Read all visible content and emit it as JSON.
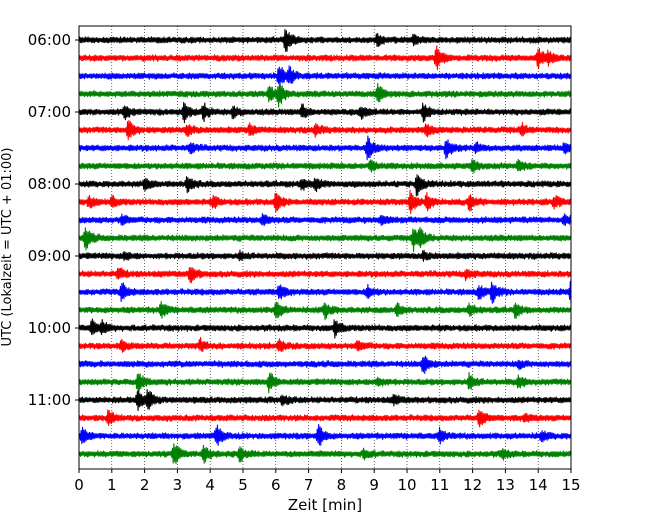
{
  "chart_data": {
    "type": "line",
    "title": "",
    "xlabel": "Zeit  [min]",
    "ylabel": "UTC (Lokalzeit = UTC + 01:00)",
    "xlim": [
      0,
      15
    ],
    "x_ticks": [
      0,
      1,
      2,
      3,
      4,
      5,
      6,
      7,
      8,
      9,
      10,
      11,
      12,
      13,
      14,
      15
    ],
    "x_tick_labels": [
      "0",
      "1",
      "2",
      "3",
      "4",
      "5",
      "6",
      "7",
      "8",
      "9",
      "10",
      "11",
      "12",
      "13",
      "14",
      "15"
    ],
    "y_tick_labels": [
      "06:00",
      "07:00",
      "08:00",
      "09:00",
      "10:00",
      "11:00"
    ],
    "grid": "vertical-dotted",
    "trace_minutes": 15,
    "colors": [
      "#000000",
      "#ff0000",
      "#0000ff",
      "#008000"
    ],
    "traces": [
      {
        "start": "06:00",
        "color": "#000000",
        "events": [
          [
            6.3,
            1.0
          ],
          [
            9.1,
            0.5
          ],
          [
            10.2,
            0.4
          ]
        ]
      },
      {
        "start": "06:15",
        "color": "#ff0000",
        "events": [
          [
            10.9,
            1.0
          ],
          [
            14.0,
            0.8
          ],
          [
            14.3,
            0.5
          ]
        ]
      },
      {
        "start": "06:30",
        "color": "#0000ff",
        "events": [
          [
            6.1,
            1.0
          ],
          [
            6.4,
            0.7
          ]
        ]
      },
      {
        "start": "06:45",
        "color": "#008000",
        "events": [
          [
            5.8,
            0.7
          ],
          [
            6.1,
            1.0
          ],
          [
            9.1,
            0.9
          ]
        ]
      },
      {
        "start": "07:00",
        "color": "#000000",
        "events": [
          [
            1.4,
            0.5
          ],
          [
            3.2,
            0.9
          ],
          [
            3.8,
            0.7
          ],
          [
            4.7,
            0.5
          ],
          [
            6.8,
            0.6
          ],
          [
            8.6,
            0.5
          ],
          [
            10.5,
            0.8
          ]
        ]
      },
      {
        "start": "07:15",
        "color": "#ff0000",
        "events": [
          [
            1.5,
            1.0
          ],
          [
            3.3,
            0.5
          ],
          [
            5.2,
            0.5
          ],
          [
            7.2,
            0.5
          ],
          [
            10.6,
            0.5
          ],
          [
            13.5,
            0.5
          ]
        ]
      },
      {
        "start": "07:30",
        "color": "#0000ff",
        "events": [
          [
            3.4,
            0.4
          ],
          [
            8.8,
            1.0
          ],
          [
            11.2,
            0.9
          ],
          [
            12.1,
            0.4
          ],
          [
            14.8,
            0.4
          ]
        ]
      },
      {
        "start": "07:45",
        "color": "#008000",
        "events": [
          [
            8.9,
            0.5
          ],
          [
            12.0,
            0.5
          ],
          [
            13.4,
            0.5
          ]
        ]
      },
      {
        "start": "08:00",
        "color": "#000000",
        "events": [
          [
            2.0,
            0.5
          ],
          [
            3.3,
            0.7
          ],
          [
            6.8,
            0.5
          ],
          [
            7.2,
            0.6
          ],
          [
            10.3,
            1.0
          ]
        ]
      },
      {
        "start": "08:15",
        "color": "#ff0000",
        "events": [
          [
            0.3,
            0.5
          ],
          [
            1.0,
            0.4
          ],
          [
            4.1,
            0.5
          ],
          [
            6.0,
            1.0
          ],
          [
            10.1,
            1.0
          ],
          [
            10.6,
            0.7
          ],
          [
            11.9,
            0.8
          ],
          [
            14.5,
            0.5
          ]
        ]
      },
      {
        "start": "08:30",
        "color": "#0000ff",
        "events": [
          [
            1.3,
            0.4
          ],
          [
            5.6,
            0.5
          ],
          [
            9.2,
            0.4
          ],
          [
            14.8,
            0.4
          ]
        ]
      },
      {
        "start": "08:45",
        "color": "#008000",
        "events": [
          [
            0.2,
            1.0
          ],
          [
            10.2,
            1.0
          ],
          [
            10.4,
            0.6
          ]
        ]
      },
      {
        "start": "09:00",
        "color": "#000000",
        "events": [
          [
            1.4,
            0.3
          ],
          [
            4.9,
            0.3
          ],
          [
            10.5,
            0.3
          ]
        ]
      },
      {
        "start": "09:15",
        "color": "#ff0000",
        "events": [
          [
            1.2,
            0.5
          ],
          [
            3.4,
            0.8
          ],
          [
            11.8,
            0.4
          ]
        ]
      },
      {
        "start": "09:30",
        "color": "#0000ff",
        "events": [
          [
            1.3,
            0.8
          ],
          [
            6.1,
            0.7
          ],
          [
            8.8,
            0.5
          ],
          [
            12.2,
            0.6
          ],
          [
            12.6,
            0.9
          ],
          [
            15.0,
            1.0
          ]
        ]
      },
      {
        "start": "09:45",
        "color": "#008000",
        "events": [
          [
            2.5,
            0.7
          ],
          [
            6.0,
            0.8
          ],
          [
            7.5,
            0.7
          ],
          [
            9.7,
            0.5
          ],
          [
            11.9,
            0.5
          ],
          [
            13.3,
            0.6
          ]
        ]
      },
      {
        "start": "10:00",
        "color": "#000000",
        "events": [
          [
            0.4,
            0.6
          ],
          [
            0.7,
            0.5
          ],
          [
            7.8,
            0.7
          ]
        ]
      },
      {
        "start": "10:15",
        "color": "#ff0000",
        "events": [
          [
            1.3,
            0.4
          ],
          [
            3.7,
            0.5
          ],
          [
            6.1,
            0.4
          ],
          [
            8.5,
            0.4
          ]
        ]
      },
      {
        "start": "10:30",
        "color": "#0000ff",
        "events": [
          [
            10.5,
            0.9
          ],
          [
            13.4,
            0.3
          ]
        ]
      },
      {
        "start": "10:45",
        "color": "#008000",
        "events": [
          [
            1.8,
            0.8
          ],
          [
            5.8,
            0.9
          ],
          [
            9.1,
            0.4
          ],
          [
            11.9,
            0.7
          ],
          [
            13.4,
            0.5
          ]
        ]
      },
      {
        "start": "11:00",
        "color": "#000000",
        "events": [
          [
            1.8,
            0.8
          ],
          [
            2.1,
            0.9
          ],
          [
            6.2,
            0.4
          ],
          [
            9.6,
            0.4
          ]
        ]
      },
      {
        "start": "11:15",
        "color": "#ff0000",
        "events": [
          [
            0.9,
            0.6
          ],
          [
            12.2,
            0.7
          ],
          [
            13.6,
            0.3
          ]
        ]
      },
      {
        "start": "11:30",
        "color": "#0000ff",
        "events": [
          [
            0.1,
            0.7
          ],
          [
            4.2,
            0.9
          ],
          [
            7.3,
            1.0
          ],
          [
            11.0,
            0.6
          ],
          [
            14.1,
            0.4
          ]
        ]
      },
      {
        "start": "11:45",
        "color": "#008000",
        "events": [
          [
            2.9,
            1.0
          ],
          [
            3.8,
            0.8
          ],
          [
            4.9,
            0.6
          ],
          [
            8.7,
            0.4
          ],
          [
            12.9,
            0.4
          ]
        ]
      }
    ]
  }
}
